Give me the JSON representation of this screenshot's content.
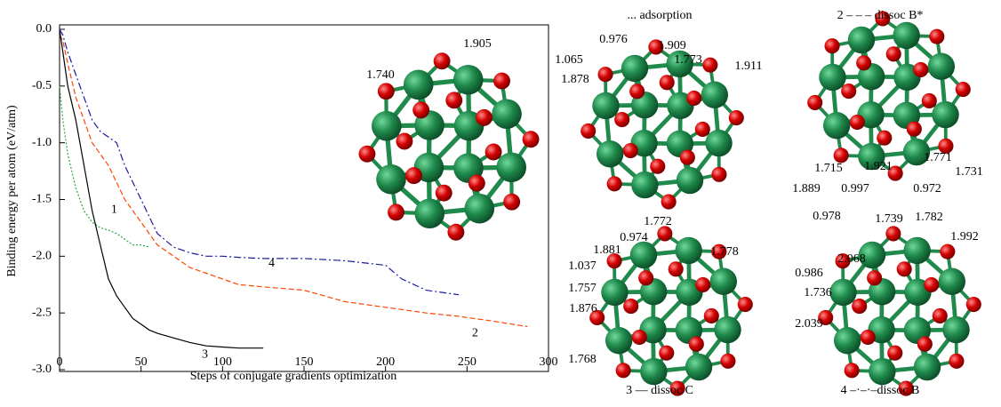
{
  "chart_data": {
    "type": "line",
    "xlabel": "Steps of conjugate gradients optimization",
    "ylabel": "Binding energy per atom (eV/atm)",
    "x": [
      0,
      2,
      5,
      10,
      15,
      20,
      25,
      30,
      35,
      40,
      45,
      50,
      55,
      60,
      70,
      80,
      90,
      100,
      110,
      125,
      150,
      175,
      200,
      210,
      225,
      245,
      265,
      287
    ],
    "series": [
      {
        "name": "1",
        "color": "#22aa44",
        "values": [
          -0.5,
          -0.8,
          -1.1,
          -1.4,
          -1.6,
          -1.7,
          -1.75,
          -1.77,
          -1.8,
          -1.85,
          -1.9,
          -1.9,
          -1.92,
          null,
          null,
          null,
          null,
          null,
          null,
          null,
          null,
          null,
          null,
          null,
          null,
          null,
          null,
          null
        ]
      },
      {
        "name": "2",
        "color": "#ff4400",
        "values": [
          -0.05,
          -0.1,
          -0.3,
          -0.6,
          -0.8,
          -1.0,
          -1.1,
          -1.2,
          -1.35,
          -1.5,
          -1.6,
          -1.7,
          -1.8,
          -1.9,
          -2.0,
          -2.1,
          -2.15,
          -2.2,
          -2.25,
          -2.27,
          -2.3,
          -2.4,
          -2.45,
          -2.47,
          -2.5,
          -2.53,
          -2.57,
          -2.62
        ]
      },
      {
        "name": "3",
        "color": "#000000",
        "values": [
          0.0,
          -0.2,
          -0.5,
          -0.8,
          -1.2,
          -1.6,
          -1.9,
          -2.2,
          -2.35,
          -2.45,
          -2.55,
          -2.6,
          -2.65,
          -2.68,
          -2.72,
          -2.76,
          -2.79,
          -2.8,
          -2.81,
          -2.81,
          null,
          null,
          null,
          null,
          null,
          null,
          null,
          null
        ]
      },
      {
        "name": "4",
        "color": "#1a1aa0",
        "values": [
          0.0,
          -0.05,
          -0.2,
          -0.4,
          -0.6,
          -0.8,
          -0.9,
          -0.95,
          -1.0,
          -1.2,
          -1.35,
          -1.5,
          -1.65,
          -1.8,
          -1.92,
          -1.97,
          -2.0,
          -2.0,
          -2.01,
          -2.02,
          -2.02,
          -2.04,
          -2.08,
          -2.2,
          -2.3,
          -2.34,
          null,
          null
        ]
      }
    ],
    "xlim": [
      0,
      300
    ],
    "xticks": [
      0,
      50,
      100,
      150,
      200,
      250,
      300
    ],
    "ylim": [
      -3.0,
      0.0
    ],
    "yticks": [
      {
        "value": 0,
        "label": "0.0"
      },
      -0.5,
      {
        "value": -1,
        "label": "-1.0"
      },
      -1.5,
      {
        "value": -2,
        "label": "-2.0"
      },
      -2.5,
      {
        "value": -3,
        "label": "-3.0"
      }
    ],
    "inset_labels": [
      "1.740",
      "1.905"
    ]
  },
  "panels": [
    {
      "caption": "... adsorption",
      "labels": [
        "0.976",
        "1.909",
        "1.065",
        "1.773",
        "1.911",
        "1.878"
      ]
    },
    {
      "caption": "2 – – – dissoc B*",
      "labels": [
        "1.771",
        "1.715",
        "1.921",
        "1.731",
        "1.889",
        "0.997",
        "0.972"
      ]
    },
    {
      "caption": "3 — dissoc C",
      "labels": [
        "1.772",
        "0.974",
        "1.881",
        "1.778",
        "1.037",
        "1.757",
        "1.876",
        "1.768"
      ]
    },
    {
      "caption": "4 –·–·–dissoc B",
      "labels": [
        "0.978",
        "1.739",
        "1.782",
        "1.992",
        "2.068",
        "0.986",
        "1.736",
        "2.039"
      ]
    }
  ]
}
